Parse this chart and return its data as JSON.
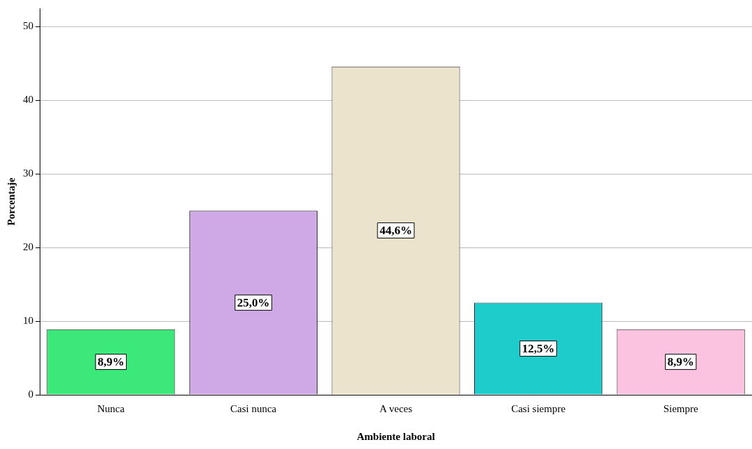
{
  "chart_data": {
    "type": "bar",
    "xlabel": "Ambiente laboral",
    "ylabel": "Porcentaje",
    "categories": [
      "Nunca",
      "Casi nunca",
      "A veces",
      "Casi siempre",
      "Siempre"
    ],
    "values": [
      8.9,
      25.0,
      44.6,
      12.5,
      8.9
    ],
    "colors": [
      "#3de87a",
      "#cfa8e6",
      "#ebe3cc",
      "#1fcccc",
      "#fcc3e0"
    ],
    "value_labels": [
      "8,9%",
      "25,0%",
      "44,6%",
      "12,5%",
      "8,9%"
    ],
    "ylim": [
      0,
      52.5
    ],
    "yticks": [
      0,
      10,
      20,
      30,
      40,
      50
    ],
    "grid": "y"
  }
}
